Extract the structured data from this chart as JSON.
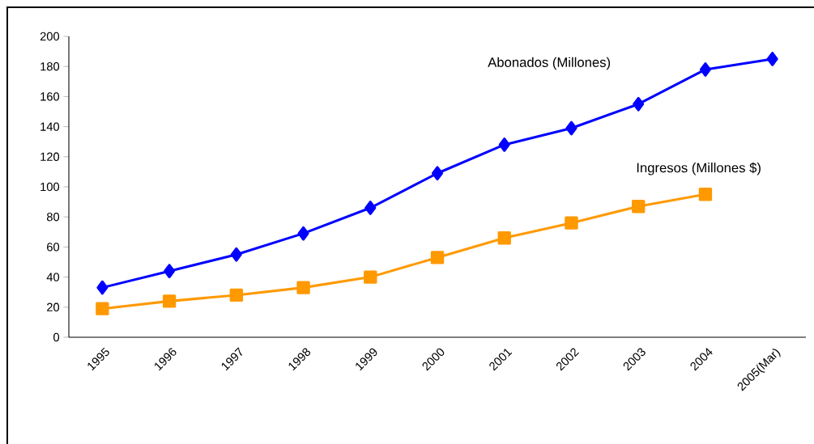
{
  "chart_data": {
    "type": "line",
    "categories": [
      "1995",
      "1996",
      "1997",
      "1998",
      "1999",
      "2000",
      "2001",
      "2002",
      "2003",
      "2004",
      "2005(Mar)"
    ],
    "series": [
      {
        "name": "Abonados (Millones)",
        "color": "#0000ff",
        "marker": "diamond",
        "values": [
          33,
          44,
          55,
          69,
          86,
          109,
          128,
          139,
          155,
          178,
          185
        ]
      },
      {
        "name": "Ingresos (Millones $)",
        "color": "#ff9900",
        "marker": "square",
        "values": [
          19,
          24,
          28,
          33,
          40,
          53,
          66,
          76,
          87,
          95,
          null
        ]
      }
    ],
    "ylim": [
      0,
      200
    ],
    "yticks": [
      0,
      20,
      40,
      60,
      80,
      100,
      120,
      140,
      160,
      180,
      200
    ],
    "grid": false,
    "legend": false,
    "line_style": "solid"
  }
}
